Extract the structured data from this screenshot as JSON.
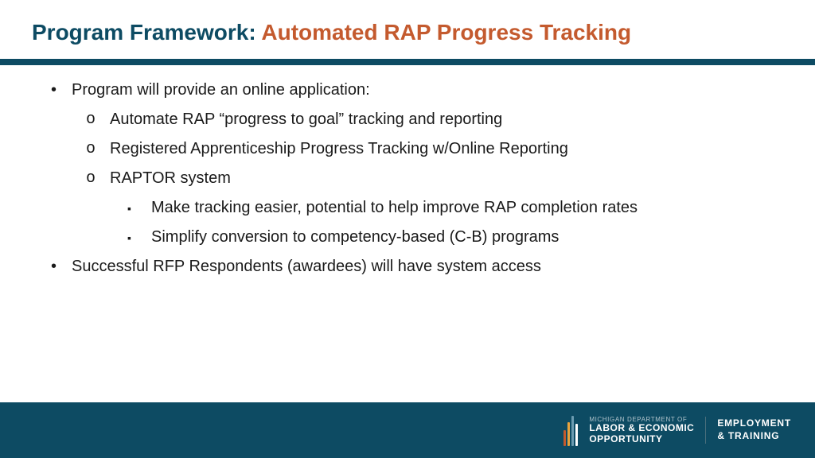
{
  "colors": {
    "title_prefix": "#0d4b63",
    "title_suffix": "#c45a2e",
    "divider": "#0d4b63",
    "footer_bg": "#0d4b63",
    "logo_bar1": "#c45a2e",
    "logo_bar2": "#e8a33d",
    "logo_bar3": "#6b9bb0",
    "logo_bar4": "#ffffff"
  },
  "title": {
    "prefix": "Program Framework: ",
    "suffix": "Automated RAP Progress Tracking"
  },
  "bullets": {
    "l1_0": "Program will provide an online application:",
    "l2_0": "Automate RAP “progress to goal” tracking and reporting",
    "l2_1": "Registered Apprenticeship Progress Tracking w/Online Reporting",
    "l2_2": "RAPTOR system",
    "l3_0": "Make tracking easier, potential to help improve RAP completion rates",
    "l3_1": "Simplify conversion to competency-based (C-B) programs",
    "l1_1": "Successful RFP Respondents (awardees) will have system access"
  },
  "footer": {
    "small": "MICHIGAN DEPARTMENT OF",
    "line1": "LABOR & ECONOMIC",
    "line2": "OPPORTUNITY",
    "right1": "EMPLOYMENT",
    "right2": "& TRAINING"
  }
}
